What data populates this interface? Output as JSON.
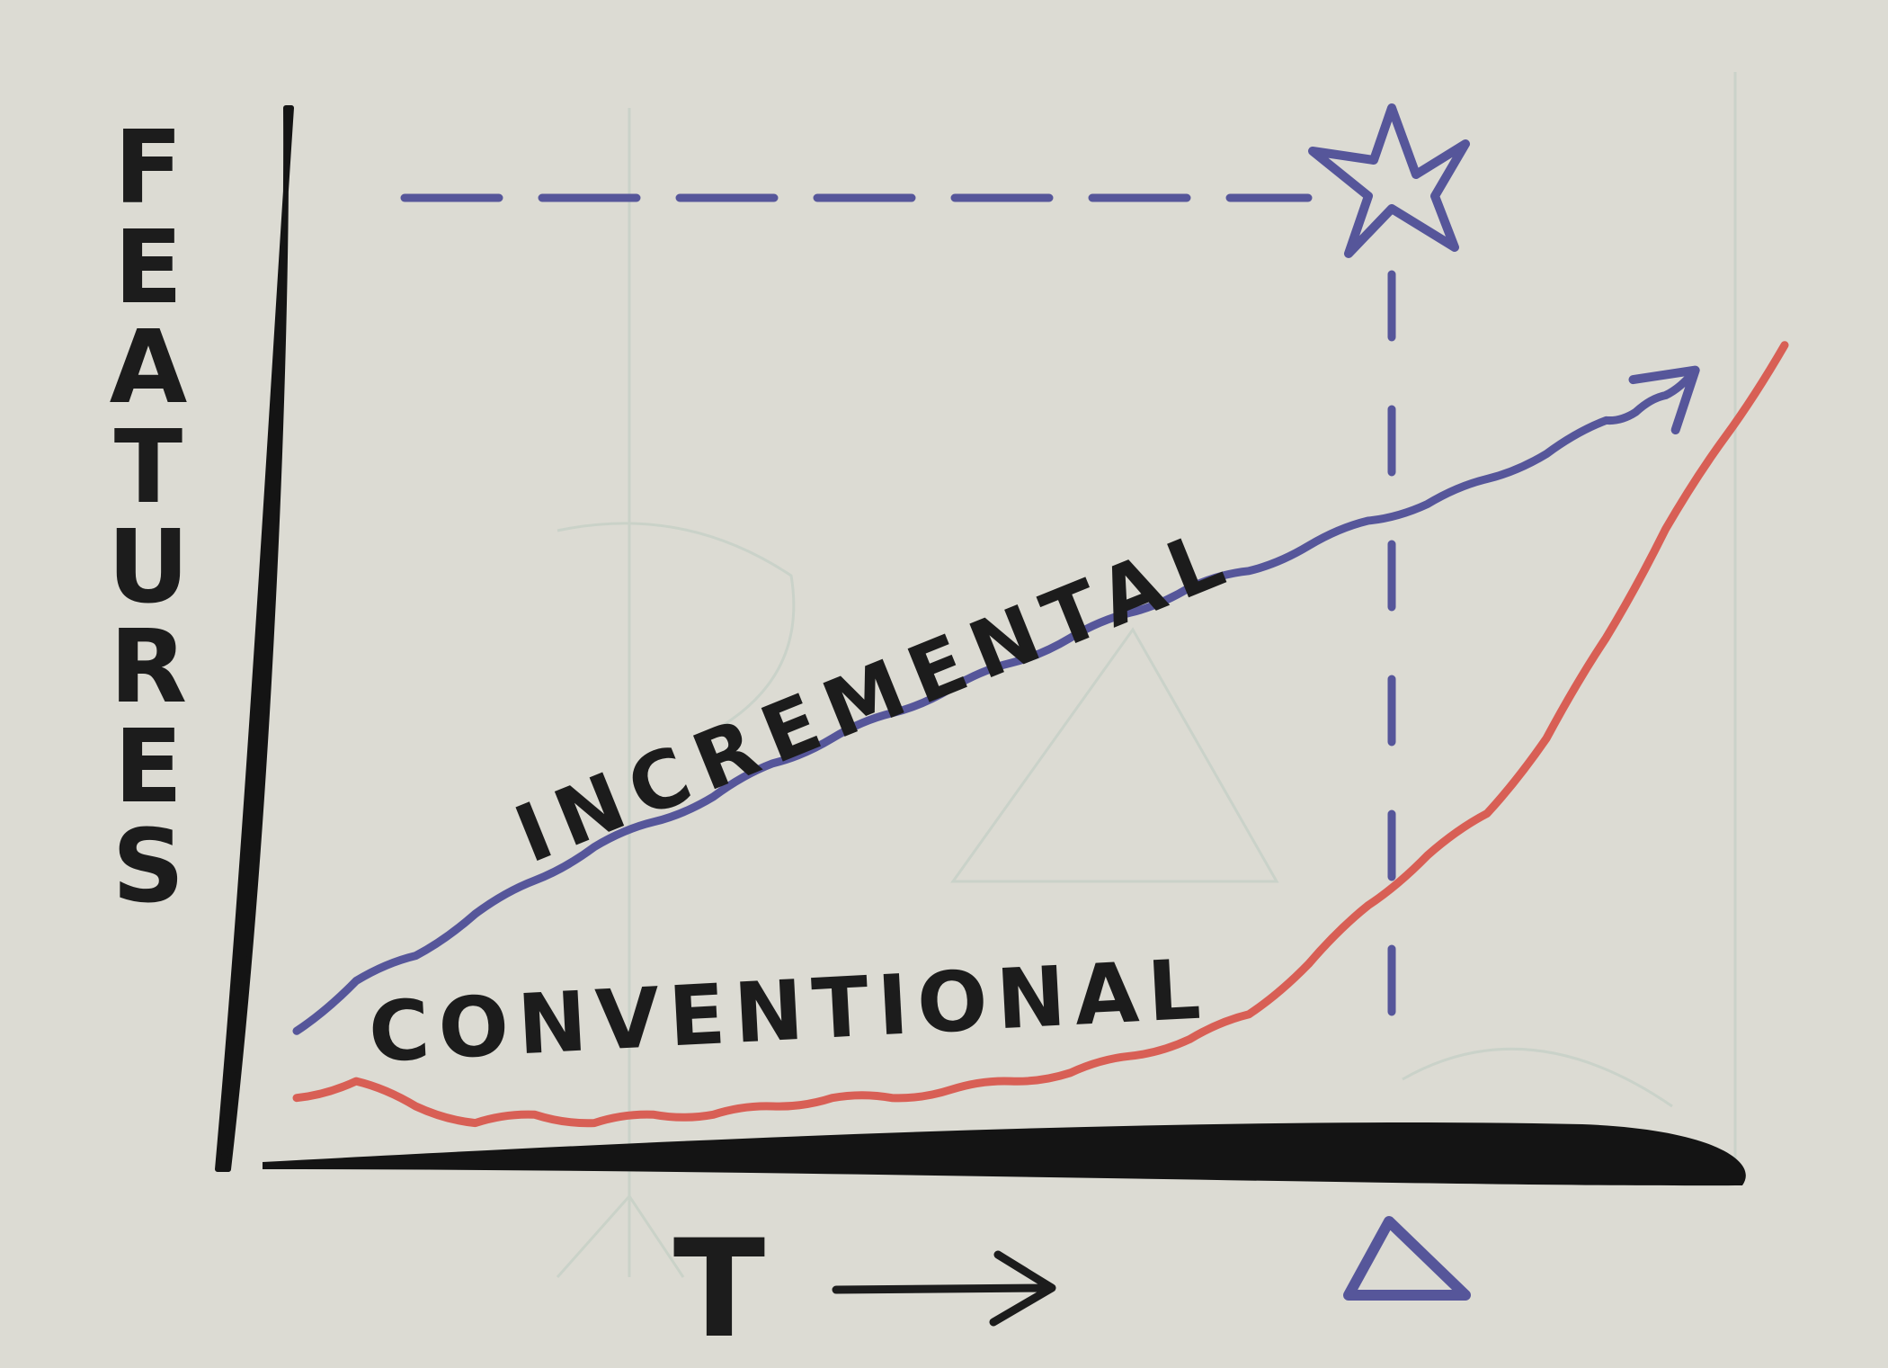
{
  "chart_data": {
    "type": "line",
    "ylabel": "FEATURES",
    "xlabel": "T",
    "xlim": [
      0,
      100
    ],
    "ylim": [
      0,
      100
    ],
    "grid": false,
    "series": [
      {
        "name": "INCREMENTAL",
        "color": "#56569a",
        "x": [
          0,
          4,
          8,
          12,
          16,
          20,
          24,
          28,
          32,
          36,
          40,
          44,
          48,
          52,
          56,
          60,
          64,
          68,
          72,
          76,
          80,
          84,
          88,
          90,
          92,
          94
        ],
        "y": [
          9,
          15,
          18,
          23,
          27,
          31,
          34,
          37,
          41,
          44,
          47,
          50,
          53,
          56,
          59,
          62,
          64,
          67,
          70,
          72,
          75,
          78,
          82,
          83,
          85,
          88
        ]
      },
      {
        "name": "CONVENTIONAL",
        "color": "#d85f55",
        "x": [
          0,
          4,
          8,
          12,
          16,
          20,
          24,
          28,
          32,
          36,
          40,
          44,
          48,
          52,
          56,
          60,
          64,
          68,
          72,
          76,
          80,
          84,
          88,
          92,
          96,
          100
        ],
        "y": [
          1,
          3,
          0,
          -2,
          -1,
          -2,
          -1,
          -1,
          0,
          1,
          1,
          2,
          3,
          4,
          6,
          8,
          11,
          17,
          24,
          30,
          35,
          44,
          56,
          69,
          80,
          91
        ]
      }
    ],
    "annotations": {
      "target_symbol": "☆",
      "deadline_symbol": "△",
      "deadline_x": 76,
      "target_y": 112,
      "color": "#56569a"
    }
  }
}
